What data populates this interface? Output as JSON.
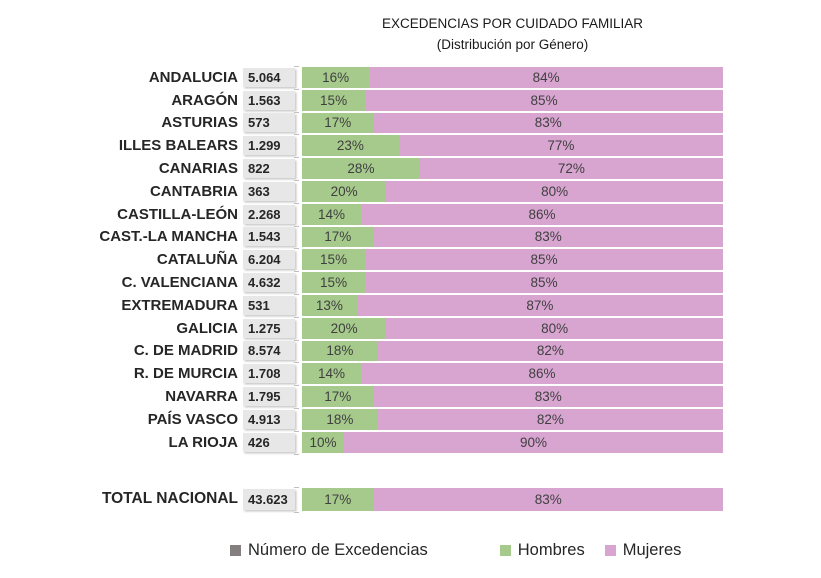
{
  "legend": {
    "items": [
      {
        "label": "Número de Excedencias",
        "color": "#857e7e"
      },
      {
        "label": "Hombres",
        "color": "#a6c98c"
      },
      {
        "label": "Mujeres",
        "color": "#d8a5d1"
      }
    ]
  },
  "colors": {
    "hombres": "#a6c98c",
    "mujeres": "#d8a5d1",
    "value_cell_bg": "#e7e7e7",
    "axis_tick": "#c0c0c0",
    "text": "#262626"
  },
  "chart_data": {
    "type": "bar",
    "orientation": "horizontal",
    "stacked": true,
    "title": "EXCEDENCIAS POR CUIDADO FAMILIAR",
    "subtitle": "(Distribución por Género)",
    "xlim": [
      0,
      100
    ],
    "unit": "%",
    "legend_position": "bottom",
    "categories": [
      "ANDALUCIA",
      "ARAGÓN",
      "ASTURIAS",
      "ILLES BALEARS",
      "CANARIAS",
      "CANTABRIA",
      "CASTILLA-LEÓN",
      "CAST.-LA MANCHA",
      "CATALUÑA",
      "C. VALENCIANA",
      "EXTREMADURA",
      "GALICIA",
      "C. DE MADRID",
      "R. DE MURCIA",
      "NAVARRA",
      "PAÍS VASCO",
      "LA RIOJA"
    ],
    "value_labels": [
      "5.064",
      "1.563",
      "573",
      "1.299",
      "822",
      "363",
      "2.268",
      "1.543",
      "6.204",
      "4.632",
      "531",
      "1.275",
      "8.574",
      "1.708",
      "1.795",
      "4.913",
      "426"
    ],
    "series": [
      {
        "name": "Hombres",
        "color": "#a6c98c",
        "values": [
          16,
          15,
          17,
          23,
          28,
          20,
          14,
          17,
          15,
          15,
          13,
          20,
          18,
          14,
          17,
          18,
          10
        ]
      },
      {
        "name": "Mujeres",
        "color": "#d8a5d1",
        "values": [
          84,
          85,
          83,
          77,
          72,
          80,
          86,
          83,
          85,
          85,
          87,
          80,
          82,
          86,
          83,
          82,
          90
        ]
      }
    ],
    "total_row": {
      "category": "TOTAL NACIONAL",
      "value_label": "43.623",
      "hombres": 17,
      "mujeres": 83
    }
  }
}
